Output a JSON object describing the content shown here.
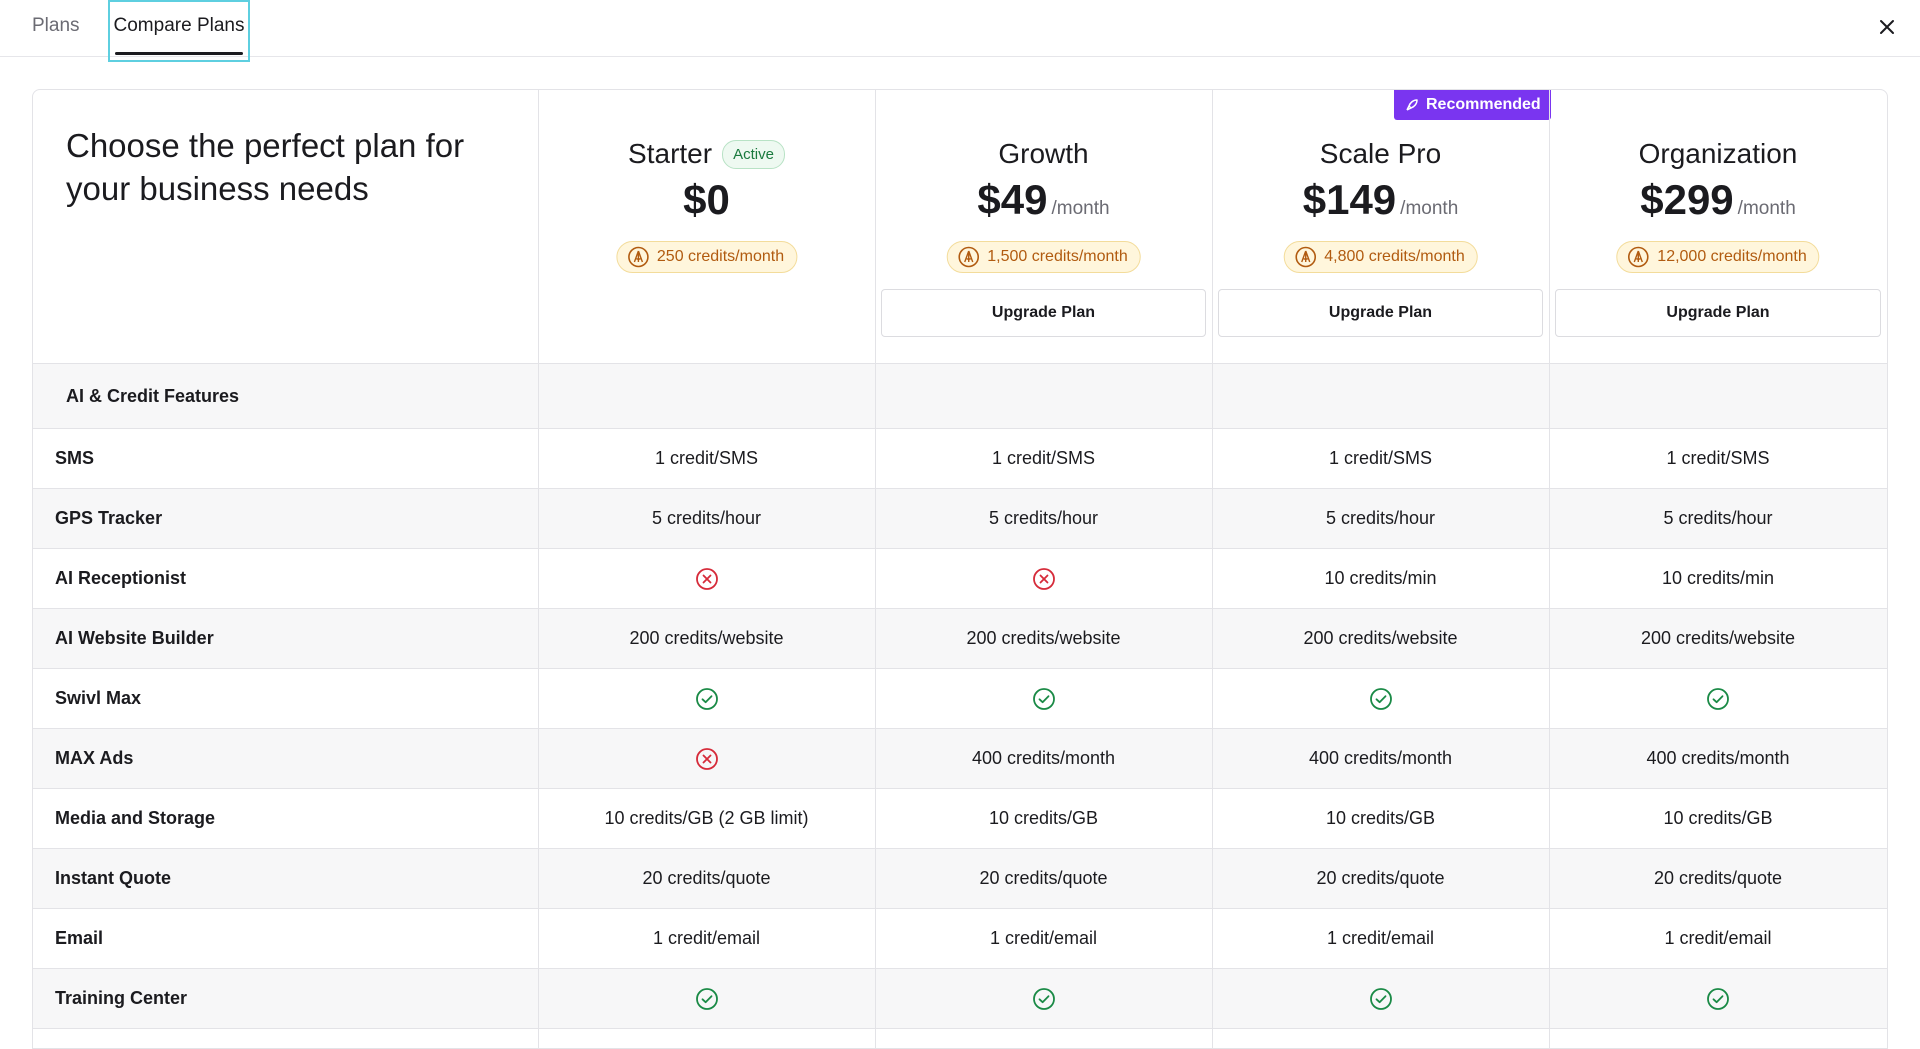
{
  "tabs": {
    "plans": "Plans",
    "compare": "Compare Plans"
  },
  "headline": "Choose the perfect plan for your business needs",
  "plans": [
    {
      "name": "Starter",
      "badge": "Active",
      "price": "$0",
      "per": "",
      "credits": "250 credits/month",
      "button": ""
    },
    {
      "name": "Growth",
      "badge": "",
      "price": "$49",
      "per": "/month",
      "credits": "1,500 credits/month",
      "button": "Upgrade Plan"
    },
    {
      "name": "Scale Pro",
      "badge": "",
      "price": "$149",
      "per": "/month",
      "credits": "4,800 credits/month",
      "button": "Upgrade Plan",
      "recommended": "Recommended"
    },
    {
      "name": "Organization",
      "badge": "",
      "price": "$299",
      "per": "/month",
      "credits": "12,000 credits/month",
      "button": "Upgrade Plan"
    }
  ],
  "section": "AI & Credit Features",
  "rows": [
    {
      "label": "SMS",
      "values": [
        "1 credit/SMS",
        "1 credit/SMS",
        "1 credit/SMS",
        "1 credit/SMS"
      ]
    },
    {
      "label": "GPS Tracker",
      "values": [
        "5 credits/hour",
        "5 credits/hour",
        "5 credits/hour",
        "5 credits/hour"
      ]
    },
    {
      "label": "AI Receptionist",
      "values": [
        "x-icon",
        "x-icon",
        "10 credits/min",
        "10 credits/min"
      ]
    },
    {
      "label": "AI Website Builder",
      "values": [
        "200 credits/website",
        "200 credits/website",
        "200 credits/website",
        "200 credits/website"
      ]
    },
    {
      "label": "Swivl Max",
      "values": [
        "check-icon",
        "check-icon",
        "check-icon",
        "check-icon"
      ]
    },
    {
      "label": "MAX Ads",
      "values": [
        "x-icon",
        "400 credits/month",
        "400 credits/month",
        "400 credits/month"
      ]
    },
    {
      "label": "Media and Storage",
      "values": [
        "10 credits/GB (2 GB limit)",
        "10 credits/GB",
        "10 credits/GB",
        "10 credits/GB"
      ]
    },
    {
      "label": "Instant Quote",
      "values": [
        "20 credits/quote",
        "20 credits/quote",
        "20 credits/quote",
        "20 credits/quote"
      ]
    },
    {
      "label": "Email",
      "values": [
        "1 credit/email",
        "1 credit/email",
        "1 credit/email",
        "1 credit/email"
      ]
    },
    {
      "label": "Training Center",
      "values": [
        "check-icon",
        "check-icon",
        "check-icon",
        "check-icon"
      ]
    }
  ],
  "colors": {
    "accent": "#7a35f0",
    "check": "#1a8a46",
    "cross": "#d62b3a",
    "credit": "#b15b10",
    "focus": "#5ecfe0"
  }
}
